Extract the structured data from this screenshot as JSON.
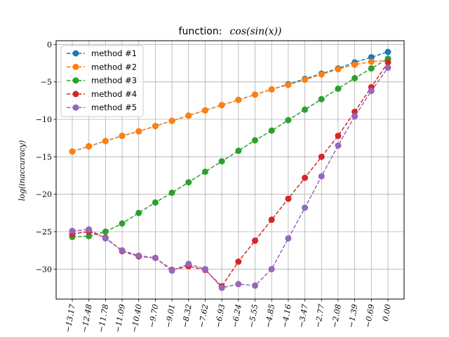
{
  "chart_data": {
    "type": "line",
    "title_prefix": "function:",
    "title_math": "cos(sin(x))",
    "xlabel": "",
    "ylabel": "log(inaccuracy)",
    "x_tick_labels": [
      "−13.17",
      "−12.48",
      "−11.78",
      "−11.09",
      "−10.40",
      "−9.70",
      "−9.01",
      "−8.32",
      "−7.62",
      "−6.93",
      "−6.24",
      "−5.55",
      "−4.85",
      "−4.16",
      "−3.47",
      "−2.77",
      "−2.08",
      "−1.39",
      "−0.69",
      "0.00"
    ],
    "y_ticks": [
      0,
      -5,
      -10,
      -15,
      -20,
      -25,
      -30
    ],
    "y_tick_labels": [
      "0",
      "−5",
      "−10",
      "−15",
      "−20",
      "−25",
      "−30"
    ],
    "ylim": [
      -34,
      0.5
    ],
    "grid": true,
    "legend_position": "top-left",
    "series": [
      {
        "name": "method #1",
        "color": "#1f77b4",
        "values": [
          -14.3,
          -13.6,
          -12.9,
          -12.2,
          -11.6,
          -10.9,
          -10.2,
          -9.5,
          -8.8,
          -8.1,
          -7.4,
          -6.7,
          -6.0,
          -5.3,
          -4.6,
          -3.9,
          -3.2,
          -2.4,
          -1.7,
          -1.0
        ]
      },
      {
        "name": "method #2",
        "color": "#ff7f0e",
        "values": [
          -14.3,
          -13.6,
          -12.9,
          -12.2,
          -11.6,
          -10.9,
          -10.2,
          -9.5,
          -8.8,
          -8.1,
          -7.4,
          -6.7,
          -6.0,
          -5.4,
          -4.7,
          -4.0,
          -3.3,
          -2.7,
          -2.3,
          -2.1
        ]
      },
      {
        "name": "method #3",
        "color": "#2ca02c",
        "values": [
          -25.7,
          -25.6,
          -25.0,
          -23.9,
          -22.5,
          -21.1,
          -19.8,
          -18.4,
          -17.0,
          -15.6,
          -14.2,
          -12.8,
          -11.5,
          -10.1,
          -8.7,
          -7.3,
          -5.9,
          -4.5,
          -3.2,
          -1.9
        ]
      },
      {
        "name": "method #4",
        "color": "#d62728",
        "values": [
          -25.3,
          -25.0,
          -25.8,
          -27.6,
          -28.3,
          -28.5,
          -30.1,
          -29.6,
          -30.1,
          -32.3,
          -29.0,
          -26.2,
          -23.4,
          -20.6,
          -17.8,
          -15.0,
          -12.2,
          -9.0,
          -5.7,
          -2.4
        ]
      },
      {
        "name": "method #5",
        "color": "#9467bd",
        "values": [
          -24.9,
          -24.7,
          -25.9,
          -27.5,
          -28.2,
          -28.5,
          -30.2,
          -29.3,
          -30.0,
          -32.5,
          -32.0,
          -32.2,
          -30.0,
          -25.9,
          -21.8,
          -17.6,
          -13.5,
          -9.6,
          -6.2,
          -3.1
        ]
      }
    ]
  }
}
